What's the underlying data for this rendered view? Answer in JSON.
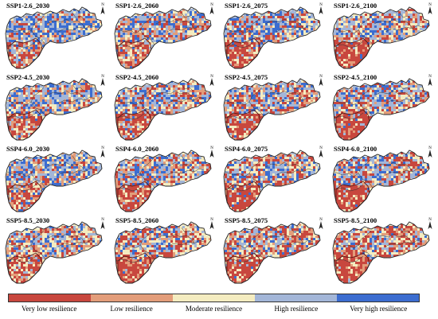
{
  "panels": [
    {
      "title": "SSP1-2.6_2030",
      "weights": [
        0.1,
        0.14,
        0.16,
        0.3,
        0.3
      ]
    },
    {
      "title": "SSP1-2.6_2060",
      "weights": [
        0.18,
        0.22,
        0.18,
        0.24,
        0.18
      ]
    },
    {
      "title": "SSP1-2.6_2075",
      "weights": [
        0.22,
        0.12,
        0.16,
        0.28,
        0.22
      ]
    },
    {
      "title": "SSP1-2.6_2100",
      "weights": [
        0.24,
        0.14,
        0.2,
        0.26,
        0.16
      ]
    },
    {
      "title": "SSP2-4.5_2030",
      "weights": [
        0.16,
        0.16,
        0.18,
        0.28,
        0.22
      ]
    },
    {
      "title": "SSP2-4.5_2060",
      "weights": [
        0.24,
        0.16,
        0.18,
        0.26,
        0.16
      ]
    },
    {
      "title": "SSP2-4.5_2075",
      "weights": [
        0.26,
        0.16,
        0.2,
        0.24,
        0.14
      ]
    },
    {
      "title": "SSP2-4.5_2100",
      "weights": [
        0.28,
        0.14,
        0.18,
        0.24,
        0.16
      ]
    },
    {
      "title": "SSP4-6.0_2030",
      "weights": [
        0.14,
        0.16,
        0.2,
        0.28,
        0.22
      ]
    },
    {
      "title": "SSP4-6.0_2060",
      "weights": [
        0.24,
        0.18,
        0.18,
        0.24,
        0.16
      ]
    },
    {
      "title": "SSP4-6.0_2075",
      "weights": [
        0.28,
        0.14,
        0.18,
        0.24,
        0.16
      ]
    },
    {
      "title": "SSP4-6.0_2100",
      "weights": [
        0.3,
        0.14,
        0.18,
        0.22,
        0.16
      ]
    },
    {
      "title": "SSP5-8.5_2030",
      "weights": [
        0.22,
        0.18,
        0.26,
        0.22,
        0.12
      ]
    },
    {
      "title": "SSP5-8.5_2060",
      "weights": [
        0.3,
        0.18,
        0.24,
        0.18,
        0.1
      ]
    },
    {
      "title": "SSP5-8.5_2075",
      "weights": [
        0.34,
        0.16,
        0.24,
        0.18,
        0.08
      ]
    },
    {
      "title": "SSP5-8.5_2100",
      "weights": [
        0.36,
        0.18,
        0.22,
        0.16,
        0.08
      ]
    }
  ],
  "north_label": "N",
  "legend": {
    "classes": [
      {
        "label": "Very low resilience",
        "color": "#c8473e"
      },
      {
        "label": "Low resilience",
        "color": "#e39d7a"
      },
      {
        "label": "Moderate resilience",
        "color": "#f4ecc0"
      },
      {
        "label": "High resilience",
        "color": "#a3b6d8"
      },
      {
        "label": "Very high resilience",
        "color": "#3c6dd0"
      }
    ]
  }
}
